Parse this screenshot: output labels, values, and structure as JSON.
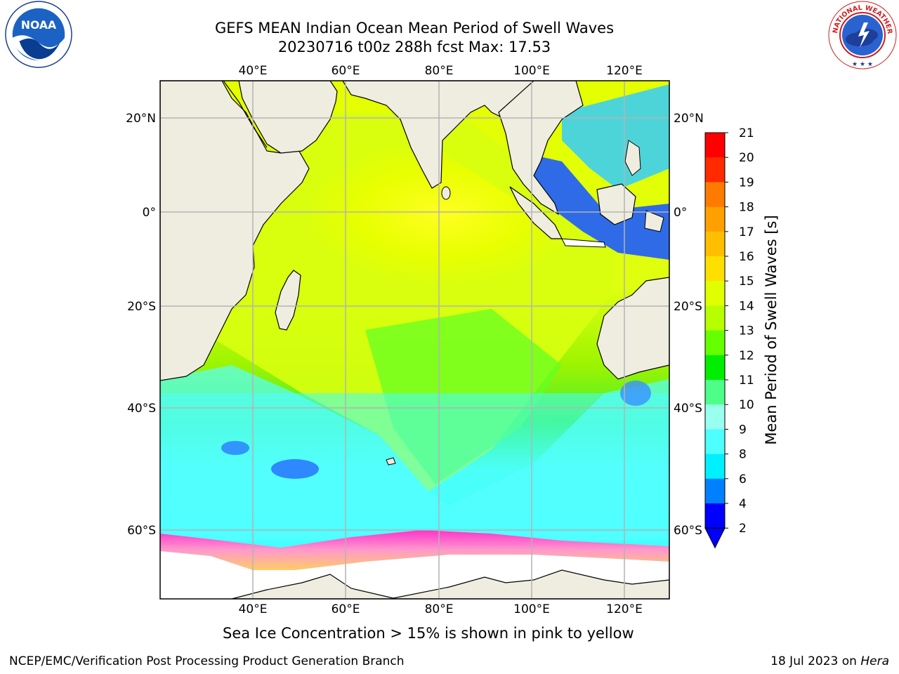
{
  "header": {
    "title_line1": "GEFS MEAN Indian Ocean Mean Period of Swell Waves",
    "title_line2": "20230716 t00z 288h fcst   Max: 17.53"
  },
  "logos": {
    "left": {
      "name": "noaa-logo",
      "text": "NOAA"
    },
    "right": {
      "name": "national-weather-service-logo",
      "text": "NATIONAL WEATHER SERVICE"
    }
  },
  "map": {
    "lon_ticks": [
      "40°E",
      "60°E",
      "80°E",
      "100°E",
      "120°E"
    ],
    "lat_ticks": [
      "20°N",
      "0°",
      "20°S",
      "40°S",
      "60°S"
    ],
    "extent": {
      "lon_min": 20,
      "lon_max": 130,
      "lat_min": -70,
      "lat_max": 28
    },
    "colors": {
      "land": "#eeede0",
      "ice_free_low": "#1e6bff",
      "mid": "#00ffff",
      "high": "#ffff00",
      "ice": "#ff66cc"
    }
  },
  "colorbar": {
    "label": "Mean Period of Swell Waves [s]",
    "ticks": [
      "21",
      "20",
      "19",
      "18",
      "17",
      "16",
      "15",
      "14",
      "13",
      "12",
      "11",
      "10",
      "9",
      "8",
      "6",
      "4",
      "2"
    ],
    "colors": [
      "#ff0000",
      "#ff2a00",
      "#ff5500",
      "#ff7a00",
      "#ff9f00",
      "#ffbf00",
      "#ffdf00",
      "#ffff00",
      "#e0ff00",
      "#b7ff00",
      "#66ff00",
      "#00ee00",
      "#00dd00",
      "#4dff88",
      "#99ffee",
      "#4dffff",
      "#00f0ff",
      "#00c8ff",
      "#0080ff",
      "#0000ff"
    ]
  },
  "footer": {
    "ice_note": "Sea Ice Concentration > 15% is shown in pink to yellow",
    "left": "NCEP/EMC/Verification Post Processing Product Generation Branch",
    "right_date": "18 Jul 2023 on ",
    "right_host": "Hera"
  }
}
